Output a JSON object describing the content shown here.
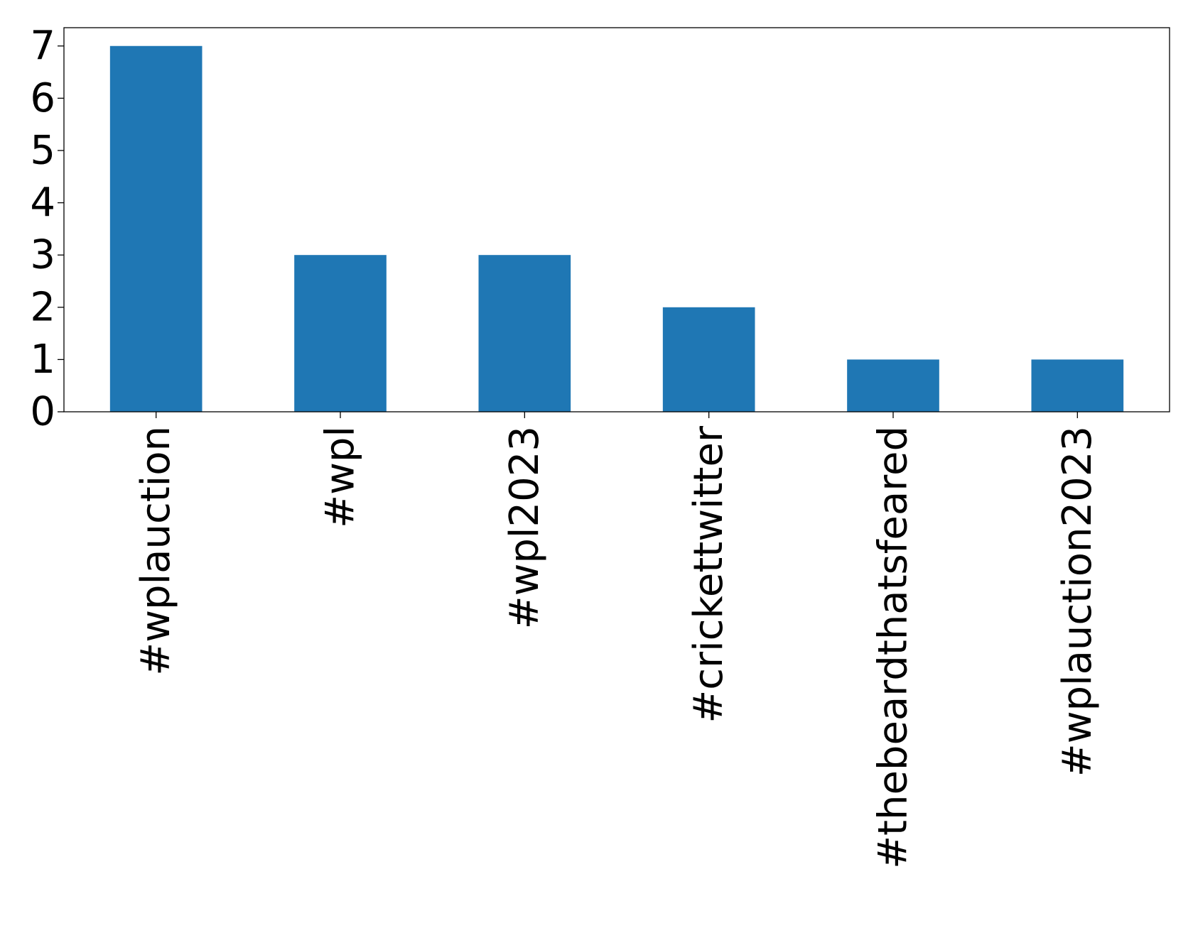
{
  "chart_data": {
    "type": "bar",
    "title": "",
    "xlabel": "",
    "ylabel": "",
    "categories": [
      "#wplauction",
      "#wpl",
      "#wpl2023",
      "#crickettwitter",
      "#thebeardthatsfeared",
      "#wplauction2023"
    ],
    "values": [
      7,
      3,
      3,
      2,
      1,
      1
    ],
    "ylim": [
      0,
      7.35
    ],
    "yticks": [
      0,
      1,
      2,
      3,
      4,
      5,
      6,
      7
    ],
    "grid": false,
    "legend": "none",
    "bar_color": "#1f77b4",
    "axis_color": "#000000",
    "xtick_rotation": "vertical"
  }
}
